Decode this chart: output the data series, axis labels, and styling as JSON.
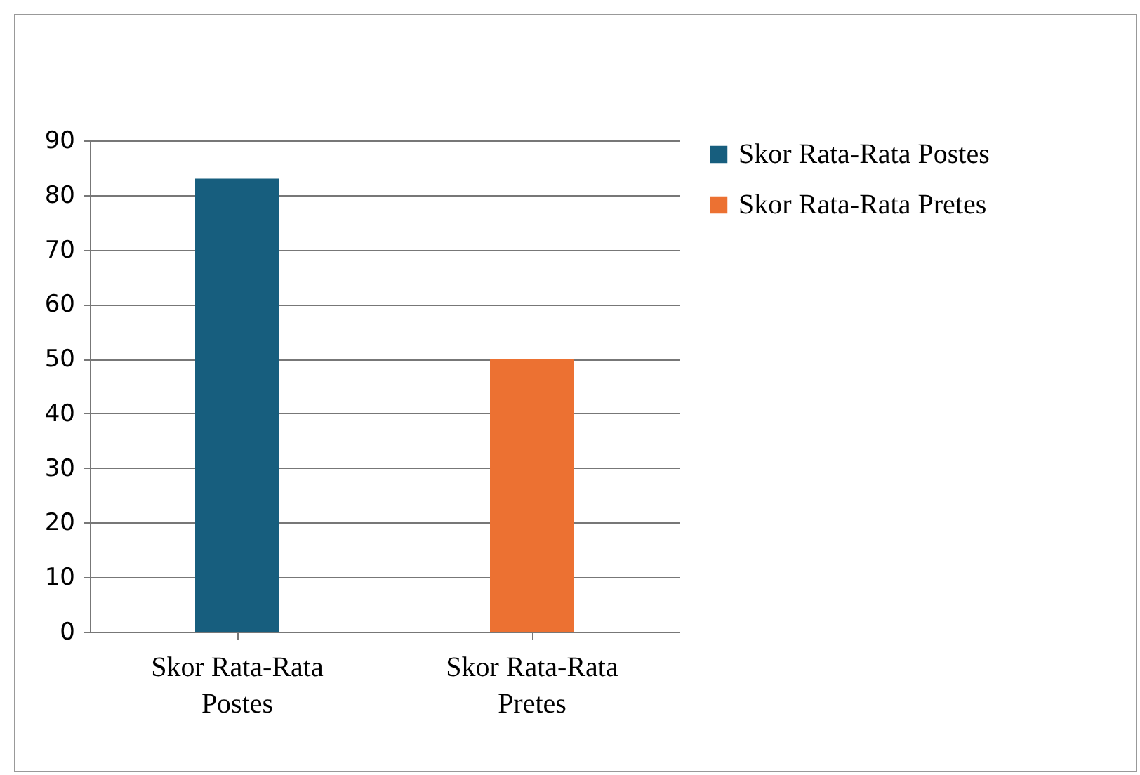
{
  "chart_data": {
    "type": "bar",
    "categories": [
      "Skor Rata-Rata Postes",
      "Skor Rata-Rata Pretes"
    ],
    "series": [
      {
        "name": "Skor Rata-Rata Postes",
        "color": "#175e7e",
        "values": [
          83,
          null
        ]
      },
      {
        "name": "Skor Rata-Rata Pretes",
        "color": "#ec7132",
        "values": [
          null,
          50
        ]
      }
    ],
    "ylim": [
      0,
      90
    ],
    "yticks": [
      0,
      10,
      20,
      30,
      40,
      50,
      60,
      70,
      80,
      90
    ],
    "grid": "y",
    "legend": "right"
  }
}
